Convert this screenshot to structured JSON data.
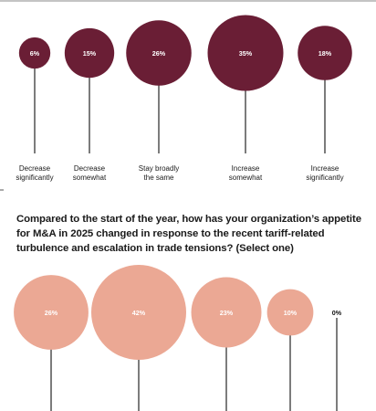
{
  "question": "Compared to the start of the year, how has your organization’s appetite for M&A in 2025 changed in response to the recent tariff-related turbulence and escalation in trade tensions? (Select one)",
  "chart_data": [
    {
      "type": "bubble",
      "color": "#6a1e35",
      "categories": [
        "Decrease significantly",
        "Decrease somewhat",
        "Stay broadly the same",
        "Increase somewhat",
        "Increase significantly"
      ],
      "category_lines": [
        [
          "Decrease",
          "significantly"
        ],
        [
          "Decrease",
          "somewhat"
        ],
        [
          "Stay broadly",
          "the same"
        ],
        [
          "Increase",
          "somewhat"
        ],
        [
          "Increase",
          "significantly"
        ]
      ],
      "values": [
        6,
        15,
        26,
        35,
        18
      ],
      "value_labels": [
        "6%",
        "15%",
        "26%",
        "35%",
        "18%"
      ]
    },
    {
      "type": "bubble",
      "color": "#eba894",
      "values": [
        26,
        42,
        23,
        10,
        0
      ],
      "value_labels": [
        "26%",
        "42%",
        "23%",
        "10%",
        "0%"
      ]
    }
  ]
}
